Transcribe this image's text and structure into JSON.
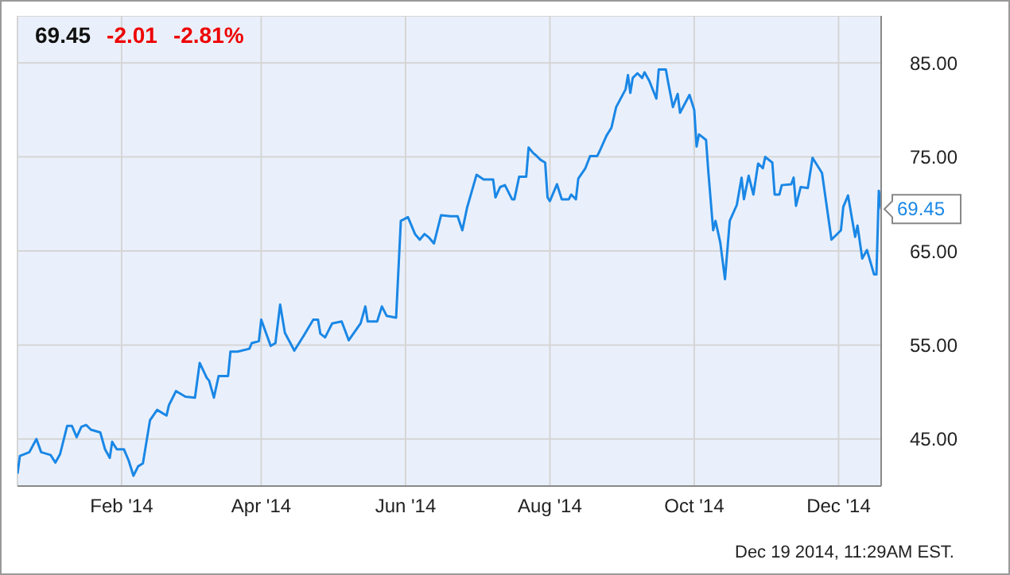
{
  "chart_data": {
    "type": "line",
    "title": "69.45",
    "annotations": [
      "-2.01",
      "-2.81%",
      {
        "text": "69.45",
        "x": "2014-12-19",
        "y": 69.45
      },
      "Dec 19 2014, 11:29AM EST."
    ],
    "x": [
      "2013-12-19",
      "2013-12-20",
      "2013-12-24",
      "2013-12-27",
      "2013-12-29",
      "2014-01-02",
      "2014-01-04",
      "2014-01-06",
      "2014-01-09",
      "2014-01-11",
      "2014-01-13",
      "2014-01-15",
      "2014-01-17",
      "2014-01-19",
      "2014-01-23",
      "2014-01-25",
      "2014-01-27",
      "2014-01-28",
      "2014-01-30",
      "2014-02-02",
      "2014-02-04",
      "2014-02-06",
      "2014-02-08",
      "2014-02-10",
      "2014-02-13",
      "2014-02-16",
      "2014-02-20",
      "2014-02-21",
      "2014-02-24",
      "2014-02-28",
      "2014-03-04",
      "2014-03-06",
      "2014-03-09",
      "2014-03-10",
      "2014-03-12",
      "2014-03-14",
      "2014-03-18",
      "2014-03-19",
      "2014-03-22",
      "2014-03-27",
      "2014-03-28",
      "2014-03-31",
      "2014-04-01",
      "2014-04-05",
      "2014-04-07",
      "2014-04-09",
      "2014-04-11",
      "2014-04-15",
      "2014-04-19",
      "2014-04-23",
      "2014-04-25",
      "2014-04-26",
      "2014-04-28",
      "2014-05-01",
      "2014-05-05",
      "2014-05-08",
      "2014-05-13",
      "2014-05-15",
      "2014-05-16",
      "2014-05-20",
      "2014-05-22",
      "2014-05-24",
      "2014-05-28",
      "2014-05-30",
      "2014-06-02",
      "2014-06-05",
      "2014-06-07",
      "2014-06-09",
      "2014-06-11",
      "2014-06-13",
      "2014-06-16",
      "2014-06-20",
      "2014-06-23",
      "2014-06-25",
      "2014-06-27",
      "2014-07-01",
      "2014-07-04",
      "2014-07-08",
      "2014-07-09",
      "2014-07-11",
      "2014-07-13",
      "2014-07-16",
      "2014-07-17",
      "2014-07-19",
      "2014-07-22",
      "2014-07-23",
      "2014-07-25",
      "2014-07-26",
      "2014-07-28",
      "2014-07-30",
      "2014-07-31",
      "2014-08-01",
      "2014-08-04",
      "2014-08-06",
      "2014-08-09",
      "2014-08-10",
      "2014-08-12",
      "2014-08-13",
      "2014-08-16",
      "2014-08-18",
      "2014-08-21",
      "2014-08-22",
      "2014-08-25",
      "2014-08-27",
      "2014-08-29",
      "2014-09-02",
      "2014-09-03",
      "2014-09-04",
      "2014-09-05",
      "2014-09-07",
      "2014-09-09",
      "2014-09-10",
      "2014-09-12",
      "2014-09-15",
      "2014-09-16",
      "2014-09-19",
      "2014-09-20",
      "2014-09-22",
      "2014-09-24",
      "2014-09-25",
      "2014-09-29",
      "2014-10-01",
      "2014-10-02",
      "2014-10-03",
      "2014-10-06",
      "2014-10-07",
      "2014-10-09",
      "2014-10-10",
      "2014-10-12",
      "2014-10-14",
      "2014-10-16",
      "2014-10-19",
      "2014-10-21",
      "2014-10-22",
      "2014-10-24",
      "2014-10-26",
      "2014-10-28",
      "2014-10-30",
      "2014-10-31",
      "2014-11-03",
      "2014-11-04",
      "2014-11-06",
      "2014-11-07",
      "2014-11-11",
      "2014-11-12",
      "2014-11-13",
      "2014-11-15",
      "2014-11-18",
      "2014-11-20",
      "2014-11-24",
      "2014-11-28",
      "2014-12-02",
      "2014-12-03",
      "2014-12-05",
      "2014-12-08",
      "2014-12-09",
      "2014-12-11",
      "2014-12-13",
      "2014-12-16",
      "2014-12-17",
      "2014-12-18",
      "2014-12-19"
    ],
    "series": [
      {
        "color": "#1a87e6",
        "values": [
          41.3,
          43.2,
          43.6,
          45.0,
          43.6,
          43.3,
          42.5,
          43.4,
          46.4,
          46.4,
          45.2,
          46.3,
          46.5,
          46.0,
          45.7,
          43.9,
          43.0,
          44.7,
          43.9,
          43.9,
          42.7,
          41.1,
          42.1,
          42.4,
          47.0,
          48.1,
          47.5,
          48.6,
          50.1,
          49.5,
          49.4,
          53.1,
          51.5,
          51.2,
          49.4,
          51.7,
          51.7,
          54.3,
          54.3,
          54.6,
          55.2,
          55.4,
          57.7,
          54.9,
          55.2,
          59.3,
          56.3,
          54.4,
          56.0,
          57.7,
          57.7,
          56.2,
          55.8,
          57.3,
          57.5,
          55.5,
          57.3,
          59.1,
          57.5,
          57.5,
          59.1,
          58.1,
          57.9,
          68.2,
          68.6,
          66.8,
          66.2,
          66.8,
          66.4,
          65.8,
          68.8,
          68.7,
          68.7,
          67.2,
          69.6,
          73.1,
          72.6,
          72.6,
          70.7,
          71.8,
          72.0,
          70.5,
          70.5,
          72.9,
          72.9,
          76.0,
          75.4,
          75.2,
          74.7,
          74.4,
          70.7,
          70.3,
          72.1,
          70.5,
          70.5,
          71.0,
          70.5,
          72.7,
          73.8,
          75.1,
          75.1,
          75.6,
          77.3,
          78.1,
          80.3,
          82.2,
          83.7,
          81.8,
          83.4,
          83.9,
          83.4,
          84.0,
          83.1,
          81.2,
          84.3,
          84.3,
          82.9,
          80.3,
          81.7,
          79.7,
          81.6,
          80.0,
          76.1,
          77.4,
          76.8,
          73.3,
          67.2,
          68.2,
          65.9,
          62.0,
          68.2,
          69.9,
          72.8,
          70.5,
          73.0,
          71.0,
          74.3,
          73.8,
          75.0,
          74.4,
          71.0,
          71.0,
          72.0,
          72.1,
          72.8,
          69.8,
          71.8,
          71.7,
          74.9,
          73.3,
          66.2,
          67.2,
          69.7,
          70.9,
          66.5,
          67.7,
          64.2,
          65.1,
          62.5,
          62.5,
          71.4,
          69.45
        ]
      }
    ],
    "xlim": [
      "2013-12-19",
      "2014-12-19"
    ],
    "xticks": [
      {
        "value": "2014-02-01",
        "label": "Feb '14"
      },
      {
        "value": "2014-04-01",
        "label": "Apr '14"
      },
      {
        "value": "2014-06-01",
        "label": "Jun '14"
      },
      {
        "value": "2014-08-01",
        "label": "Aug '14"
      },
      {
        "value": "2014-10-01",
        "label": "Oct '14"
      },
      {
        "value": "2014-12-01",
        "label": "Dec '14"
      }
    ],
    "ylim": [
      40,
      90
    ],
    "yticks": [
      {
        "value": 45,
        "label": "45.00"
      },
      {
        "value": 55,
        "label": "55.00"
      },
      {
        "value": 65,
        "label": "65.00"
      },
      {
        "value": 75,
        "label": "75.00"
      },
      {
        "value": 85,
        "label": "85.00"
      }
    ],
    "grid": true,
    "marker": "none",
    "line_style": "solid"
  }
}
